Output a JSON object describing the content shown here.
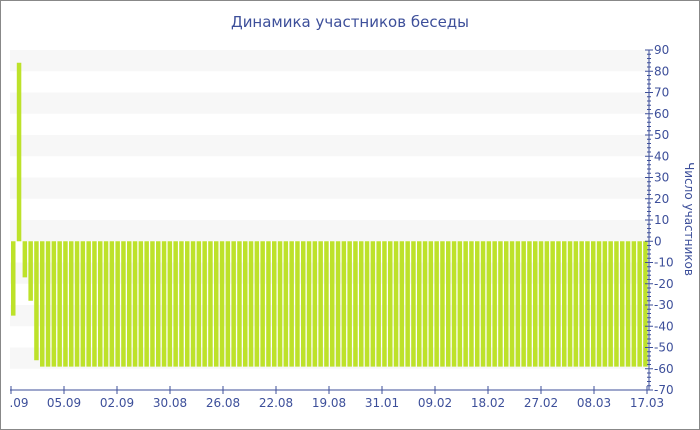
{
  "chart_data": {
    "type": "bar",
    "title": "Динамика участников беседы",
    "ylabel": "Число участников",
    "ylim": [
      -70,
      90
    ],
    "yticks": [
      90,
      80,
      70,
      60,
      50,
      40,
      30,
      20,
      10,
      0,
      -10,
      -20,
      -30,
      -40,
      -50,
      -60,
      -70
    ],
    "y_axis_position": "right",
    "grid": "alternating horizontal bands",
    "x_tick_labels": [
      ".09",
      "05.09",
      "02.09",
      "30.08",
      "26.08",
      "22.08",
      "19.08",
      "31.01",
      "09.02",
      "18.02",
      "27.02",
      "08.03",
      "17.03"
    ],
    "values_head": [
      -35,
      84,
      -17,
      -28,
      -56
    ],
    "values_rest": {
      "value": -59,
      "count": 105
    },
    "bar_color": "#bde22a",
    "axis_color": "#3d4f9a",
    "band_color": "#f7f7f7"
  }
}
